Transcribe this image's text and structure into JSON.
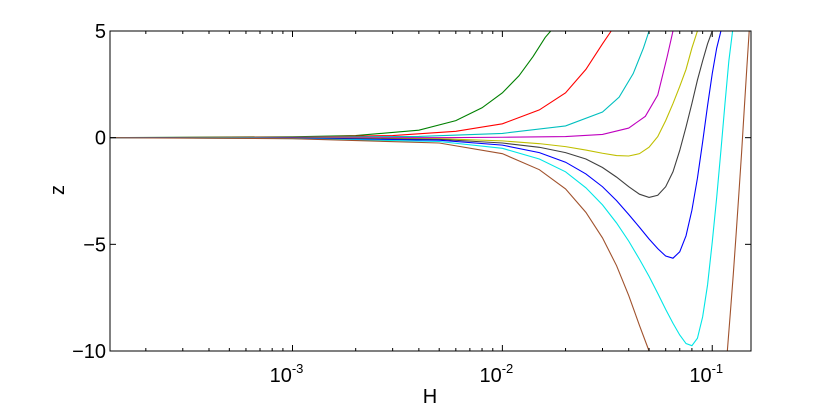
{
  "chart_data": {
    "type": "line",
    "title": "",
    "xlabel": "H",
    "ylabel": "z",
    "xscale": "log",
    "xlim": [
      0.000135,
      0.153
    ],
    "ylim": [
      -10,
      5
    ],
    "grid": false,
    "x_ticks": [
      {
        "value": 0.001,
        "base": "10",
        "exp": "-3"
      },
      {
        "value": 0.01,
        "base": "10",
        "exp": "-2"
      },
      {
        "value": 0.1,
        "base": "10",
        "exp": "-1"
      }
    ],
    "y_ticks": [
      {
        "value": 5,
        "label": "5"
      },
      {
        "value": 0,
        "label": "0"
      },
      {
        "value": -5,
        "label": "−5"
      },
      {
        "value": -10,
        "label": "−10"
      }
    ],
    "series": [
      {
        "color": "#008000",
        "x": [
          0.000135,
          0.001,
          0.002,
          0.004,
          0.006,
          0.008,
          0.01,
          0.012,
          0.014,
          0.016,
          0.017
        ],
        "y": [
          0,
          0.04,
          0.1,
          0.35,
          0.8,
          1.4,
          2.1,
          2.9,
          3.8,
          4.7,
          5.0
        ]
      },
      {
        "color": "#ff0000",
        "x": [
          0.000135,
          0.001,
          0.003,
          0.006,
          0.01,
          0.015,
          0.02,
          0.025,
          0.03,
          0.033
        ],
        "y": [
          0,
          0.02,
          0.1,
          0.3,
          0.65,
          1.3,
          2.1,
          3.2,
          4.4,
          5.0
        ]
      },
      {
        "color": "#00bfbf",
        "x": [
          0.000135,
          0.001,
          0.004,
          0.01,
          0.02,
          0.03,
          0.036,
          0.042,
          0.047,
          0.05
        ],
        "y": [
          0,
          0.01,
          0.06,
          0.2,
          0.55,
          1.2,
          1.9,
          3.0,
          4.2,
          5.0
        ]
      },
      {
        "color": "#bf00bf",
        "x": [
          0.000135,
          0.001,
          0.005,
          0.01,
          0.02,
          0.03,
          0.04,
          0.048,
          0.055,
          0.061,
          0.065
        ],
        "y": [
          0,
          0.0,
          0.0,
          0.02,
          0.05,
          0.15,
          0.45,
          1.0,
          2.0,
          3.8,
          5.0
        ]
      },
      {
        "color": "#bfbf00",
        "x": [
          0.000135,
          0.001,
          0.005,
          0.01,
          0.015,
          0.02,
          0.025,
          0.03,
          0.035,
          0.04,
          0.045,
          0.05,
          0.055,
          0.06,
          0.065,
          0.07,
          0.075,
          0.08,
          0.085
        ],
        "y": [
          0,
          -0.01,
          -0.05,
          -0.15,
          -0.28,
          -0.42,
          -0.58,
          -0.73,
          -0.84,
          -0.86,
          -0.75,
          -0.45,
          0.05,
          0.8,
          1.6,
          2.4,
          3.2,
          4.2,
          5.0
        ]
      },
      {
        "color": "#404040",
        "x": [
          0.000135,
          0.001,
          0.005,
          0.01,
          0.015,
          0.02,
          0.025,
          0.03,
          0.035,
          0.04,
          0.045,
          0.05,
          0.055,
          0.06,
          0.065,
          0.07,
          0.075,
          0.08,
          0.085,
          0.09,
          0.095,
          0.1
        ],
        "y": [
          0,
          -0.02,
          -0.08,
          -0.25,
          -0.45,
          -0.7,
          -1.0,
          -1.4,
          -1.85,
          -2.3,
          -2.65,
          -2.8,
          -2.7,
          -2.3,
          -1.6,
          -0.6,
          0.5,
          1.6,
          2.7,
          3.6,
          4.4,
          5.0
        ]
      },
      {
        "color": "#0000ff",
        "x": [
          0.000135,
          0.001,
          0.005,
          0.01,
          0.015,
          0.02,
          0.025,
          0.03,
          0.035,
          0.04,
          0.045,
          0.05,
          0.055,
          0.06,
          0.065,
          0.07,
          0.075,
          0.08,
          0.085,
          0.09,
          0.095,
          0.1,
          0.105,
          0.11
        ],
        "y": [
          0,
          -0.03,
          -0.12,
          -0.35,
          -0.7,
          -1.15,
          -1.7,
          -2.3,
          -2.95,
          -3.6,
          -4.2,
          -4.75,
          -5.2,
          -5.55,
          -5.65,
          -5.35,
          -4.6,
          -3.4,
          -1.9,
          -0.2,
          1.5,
          3.0,
          4.2,
          5.0
        ]
      },
      {
        "color": "#00e6e6",
        "x": [
          0.000135,
          0.001,
          0.005,
          0.01,
          0.015,
          0.02,
          0.025,
          0.03,
          0.035,
          0.04,
          0.045,
          0.05,
          0.055,
          0.06,
          0.065,
          0.07,
          0.075,
          0.08,
          0.085,
          0.09,
          0.095,
          0.1,
          0.105,
          0.11,
          0.115,
          0.12,
          0.125
        ],
        "y": [
          0,
          -0.04,
          -0.18,
          -0.5,
          -1.0,
          -1.6,
          -2.35,
          -3.15,
          -4.0,
          -4.85,
          -5.7,
          -6.5,
          -7.3,
          -8.05,
          -8.7,
          -9.25,
          -9.65,
          -9.75,
          -9.4,
          -8.4,
          -6.9,
          -4.9,
          -2.8,
          -0.6,
          1.6,
          3.6,
          5.0
        ]
      },
      {
        "color": "#a0522d",
        "x": [
          0.000135,
          0.001,
          0.005,
          0.01,
          0.015,
          0.02,
          0.025,
          0.03,
          0.035,
          0.04,
          0.045,
          0.05
        ],
        "y": [
          0,
          -0.05,
          -0.25,
          -0.75,
          -1.5,
          -2.4,
          -3.5,
          -4.7,
          -6.0,
          -7.4,
          -8.8,
          -10.0
        ]
      },
      {
        "color": "#a0522d",
        "x": [
          0.118,
          0.122,
          0.126,
          0.13,
          0.134,
          0.138,
          0.142,
          0.146,
          0.15
        ],
        "y": [
          -10.0,
          -8.2,
          -6.4,
          -4.5,
          -2.6,
          -0.7,
          1.3,
          3.2,
          5.0
        ]
      }
    ]
  }
}
